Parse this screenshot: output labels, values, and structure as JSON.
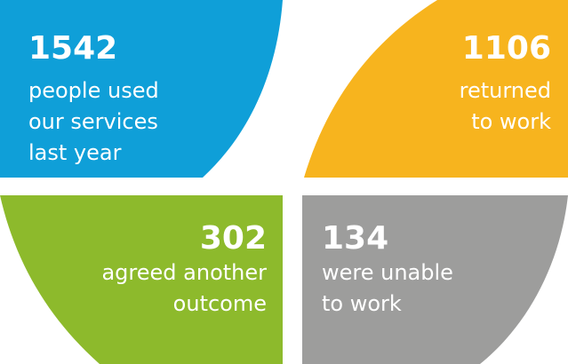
{
  "items": [
    {
      "number": "1542",
      "lines": [
        "people used",
        "our services",
        "last year"
      ]
    },
    {
      "number": "1106",
      "lines": [
        "returned",
        "to work"
      ]
    },
    {
      "number": "302",
      "lines": [
        "agreed another",
        "outcome"
      ]
    },
    {
      "number": "134",
      "lines": [
        "were unable",
        "to work"
      ]
    }
  ]
}
